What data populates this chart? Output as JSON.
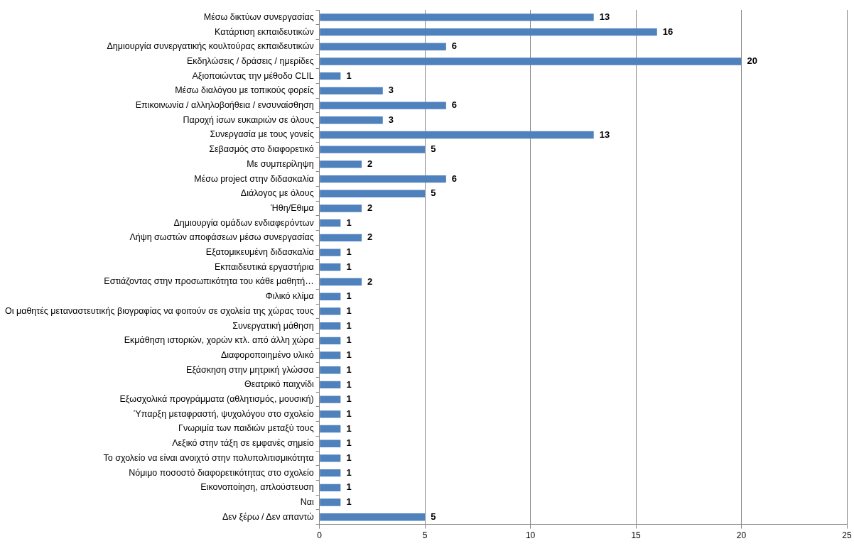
{
  "chart_data": {
    "type": "bar",
    "orientation": "horizontal",
    "categories": [
      "Μέσω δικτύων συνεργασίας",
      "Κατάρτιση εκπαιδευτικών",
      "Δημιουργία συνεργατικής κουλτούρας εκπαιδευτικών",
      "Εκδηλώσεις / δράσεις / ημερίδες",
      "Αξιοποιώντας την μέθοδο CLIL",
      "Μέσω διαλόγου με τοπικούς φορείς",
      "Επικοινωνία / αλληλοβοήθεια / ενσυναίσθηση",
      "Παροχή ίσων ευκαιριών σε όλους",
      "Συνεργασία με τους γονείς",
      "Σεβασμός στο διαφορετικό",
      "Με συμπερίληψη",
      "Μέσω project στην διδασκαλία",
      "Διάλογος με όλους",
      "Ήθη/Εθιμα",
      "Δημιουργία ομάδων ενδιαφερόντων",
      "Λήψη σωστών αποφάσεων μέσω συνεργασίας",
      "Εξατομικευμένη διδασκαλία",
      "Εκπαιδευτικά εργαστήρια",
      "Εστιάζοντας στην προσωπικότητα του κάθε μαθητή…",
      "Φιλικό κλίμα",
      "Οι μαθητές μεταναστευτικής βιογραφίας να φοιτούν σε σχολεία της χώρας τους",
      "Συνεργατική μάθηση",
      "Εκμάθηση ιστοριών, χορών κτλ. από άλλη χώρα",
      "Διαφοροποιημένο υλικό",
      "Εξάσκηση στην μητρική γλώσσα",
      "Θεατρικό παιχνίδι",
      "Εξωσχολικά προγράμματα (αθλητισμός, μουσική)",
      "Ύπαρξη μεταφραστή, ψυχολόγου στο σχολείο",
      "Γνωριμία των παιδιών μεταξύ τους",
      "Λεξικό στην τάξη σε εμφανές σημείο",
      "Το σχολείο να είναι ανοιχτό στην πολυπολιτισμικότητα",
      "Νόμιμο ποσοστό διαφορετικότητας στο σχολείο",
      "Εικονοποίηση, απλούστευση",
      "Ναι",
      "Δεν ξέρω / Δεν απαντώ"
    ],
    "values": [
      13,
      16,
      6,
      20,
      1,
      3,
      6,
      3,
      13,
      5,
      2,
      6,
      5,
      2,
      1,
      2,
      1,
      1,
      2,
      1,
      1,
      1,
      1,
      1,
      1,
      1,
      1,
      1,
      1,
      1,
      1,
      1,
      1,
      1,
      5
    ],
    "color": "#4f81bd",
    "xlim": [
      0,
      25
    ],
    "xticks": [
      0,
      5,
      10,
      15,
      20,
      25
    ],
    "grid": "x",
    "data_labels": true
  }
}
